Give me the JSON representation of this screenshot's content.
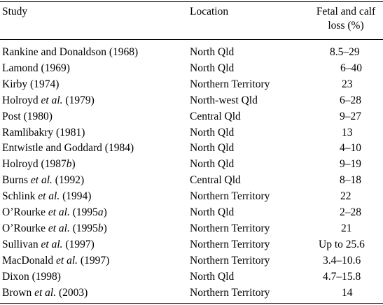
{
  "table": {
    "headers": {
      "study": "Study",
      "location": "Location",
      "loss_line1": "Fetal and calf",
      "loss_line2": "loss (%)"
    },
    "rows": [
      {
        "study_pre": "Rankine and Donaldson (1968)",
        "study_it": "",
        "study_post": "",
        "location": "North Qld",
        "loss": "8.5–29"
      },
      {
        "study_pre": "Lamond (1969)",
        "study_it": "",
        "study_post": "",
        "location": "North Qld",
        "loss": "6–40"
      },
      {
        "study_pre": "Kirby (1974)",
        "study_it": "",
        "study_post": "",
        "location": "Northern Territory",
        "loss": "23"
      },
      {
        "study_pre": "Holroyd ",
        "study_it": "et al.",
        "study_post": " (1979)",
        "location": "North-west Qld",
        "loss": "6–28"
      },
      {
        "study_pre": "Post (1980)",
        "study_it": "",
        "study_post": "",
        "location": "Central Qld",
        "loss": "9–27"
      },
      {
        "study_pre": "Ramlibakry (1981)",
        "study_it": "",
        "study_post": "",
        "location": "North Qld",
        "loss": "13"
      },
      {
        "study_pre": "Entwistle and Goddard (1984)",
        "study_it": "",
        "study_post": "",
        "location": "North Qld",
        "loss": "4–10"
      },
      {
        "study_pre": "Holroyd (1987",
        "study_it": "b",
        "study_post": ")",
        "location": "North Qld",
        "loss": "9–19"
      },
      {
        "study_pre": "Burns ",
        "study_it": "et al.",
        "study_post": " (1992)",
        "location": "Central Qld",
        "loss": "8–18"
      },
      {
        "study_pre": "Schlink ",
        "study_it": "et al.",
        "study_post": " (1994)",
        "location": "Northern Territory",
        "loss": "22"
      },
      {
        "study_pre": "O’Rourke ",
        "study_it": "et al.",
        "study_post": " (1995",
        "study_it2": "a",
        "study_post2": ")",
        "location": "North Qld",
        "loss": "2–28"
      },
      {
        "study_pre": "O’Rourke ",
        "study_it": "et al.",
        "study_post": " (1995",
        "study_it2": "b",
        "study_post2": ")",
        "location": "Northern Territory",
        "loss": "21"
      },
      {
        "study_pre": "Sullivan ",
        "study_it": "et al.",
        "study_post": " (1997)",
        "location": "Northern Territory",
        "loss": "Up to 25.6"
      },
      {
        "study_pre": "MacDonald ",
        "study_it": "et al.",
        "study_post": " (1997)",
        "location": "Northern Territory",
        "loss": "3.4–10.6"
      },
      {
        "study_pre": "Dixon (1998)",
        "study_it": "",
        "study_post": "",
        "location": "North Qld",
        "loss": "4.7–15.8"
      },
      {
        "study_pre": "Brown ",
        "study_it": "et al.",
        "study_post": " (2003)",
        "location": "Northern Territory",
        "loss": "14"
      }
    ]
  }
}
